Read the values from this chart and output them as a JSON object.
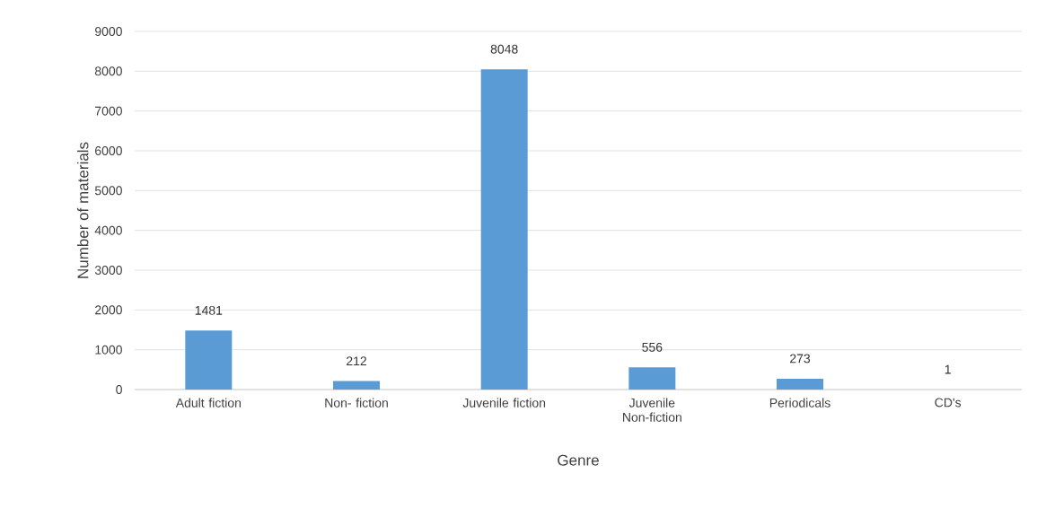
{
  "chart_data": {
    "type": "bar",
    "xlabel": "Genre",
    "ylabel": "Number of materials",
    "categories": [
      "Adult fiction",
      "Non- fiction",
      "Juvenile fiction",
      "Juvenile Non-fiction",
      "Periodicals",
      "CD's"
    ],
    "values": [
      1481,
      212,
      8048,
      556,
      273,
      1
    ],
    "color": "#5b9bd5",
    "ylim": [
      0,
      9000
    ],
    "yticks": [
      0,
      1000,
      2000,
      3000,
      4000,
      5000,
      6000,
      7000,
      8000,
      9000
    ],
    "grid": "y",
    "data_labels": true
  }
}
